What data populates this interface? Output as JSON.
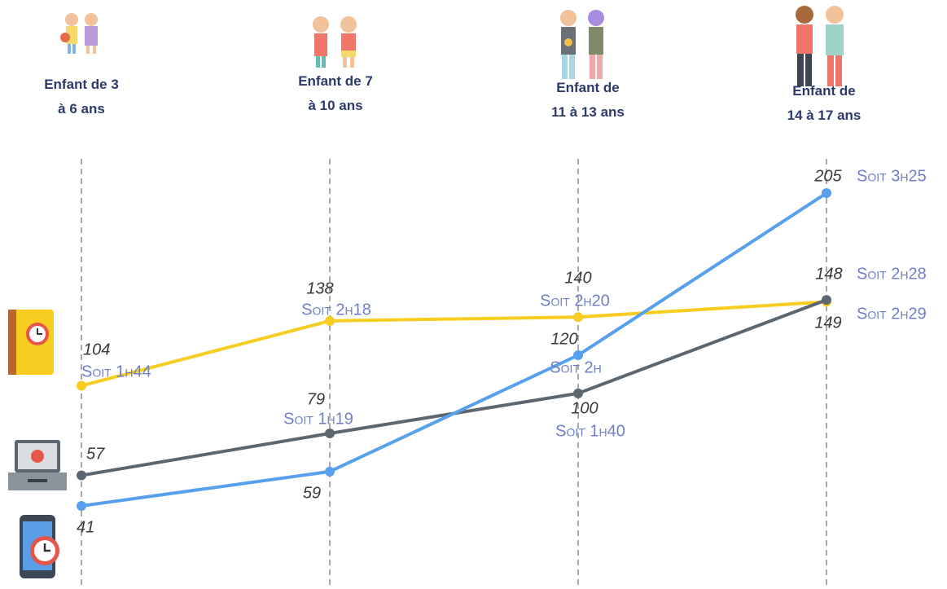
{
  "chart_data": {
    "type": "line",
    "categories": [
      "Enfant de 3\nà 6 ans",
      "Enfant de 7\nà 10 ans",
      "Enfant de\n11 à 13 ans",
      "Enfant de\n14 à 17 ans"
    ],
    "series": [
      {
        "color": "#f7cd22",
        "values": [
          104,
          138,
          140,
          148
        ],
        "duration_labels": [
          "Soit 1h44",
          "Soit 2h18",
          "Soit 2h20",
          "Soit 2h28"
        ]
      },
      {
        "color": "#5b6670",
        "values": [
          57,
          79,
          100,
          149
        ],
        "duration_labels": [
          null,
          "Soit 1h19",
          "Soit 1h40",
          "Soit 2h29"
        ]
      },
      {
        "color": "#57a0ee",
        "values": [
          41,
          59,
          120,
          205
        ],
        "duration_labels": [
          null,
          null,
          "Soit 2h",
          "Soit 3h25"
        ]
      }
    ]
  }
}
